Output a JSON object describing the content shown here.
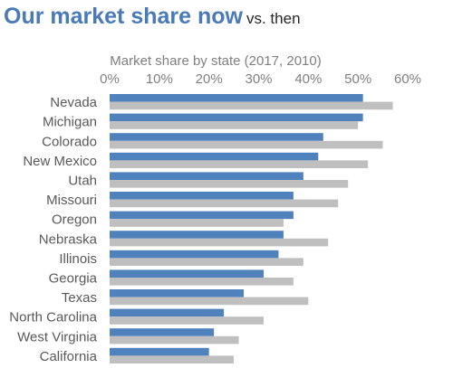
{
  "header": {
    "title": "Our market share now",
    "subtitle": "vs. then"
  },
  "colors": {
    "now": "#4f81bd",
    "then": "#bfbfbf",
    "title": "#4a7ab8",
    "axis_text": "#7f7f7f",
    "category_text": "#595959"
  },
  "chart_data": {
    "type": "bar",
    "orientation": "horizontal",
    "axis_title": "Market share by state (2017, 2010)",
    "x_axis_position": "top",
    "xlim": [
      0,
      60
    ],
    "xticks": [
      0,
      10,
      20,
      30,
      40,
      50,
      60
    ],
    "xtick_labels": [
      "0%",
      "10%",
      "20%",
      "30%",
      "40%",
      "50%",
      "60%"
    ],
    "grid": false,
    "categories": [
      "Nevada",
      "Michigan",
      "Colorado",
      "New Mexico",
      "Utah",
      "Missouri",
      "Oregon",
      "Nebraska",
      "Illinois",
      "Georgia",
      "Texas",
      "North Carolina",
      "West Virginia",
      "California"
    ],
    "series": [
      {
        "values": [
          51,
          51,
          43,
          42,
          39,
          37,
          37,
          35,
          34,
          31,
          27,
          23,
          21,
          20
        ]
      },
      {
        "values": [
          57,
          50,
          55,
          52,
          48,
          46,
          35,
          44,
          39,
          37,
          40,
          31,
          26,
          25
        ]
      }
    ]
  }
}
